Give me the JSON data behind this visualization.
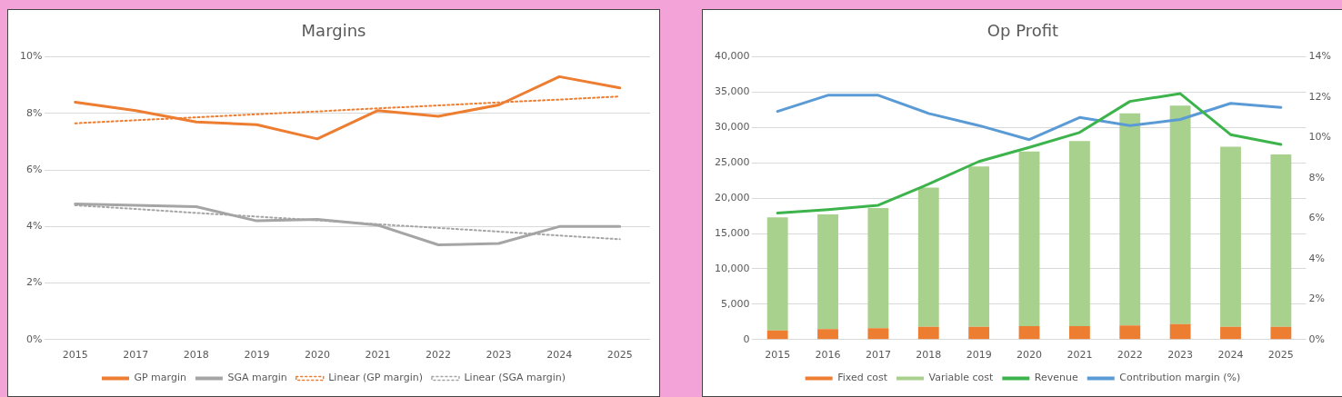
{
  "chart_data": [
    {
      "type": "line",
      "title": "Margins",
      "categories": [
        "2015",
        "2017",
        "2018",
        "2019",
        "2020",
        "2021",
        "2022",
        "2023",
        "2024",
        "2025"
      ],
      "series": [
        {
          "name": "GP margin",
          "color": "#ed7d31",
          "values": [
            8.4,
            8.1,
            7.7,
            7.6,
            7.1,
            8.1,
            7.9,
            8.3,
            9.3,
            8.9
          ]
        },
        {
          "name": "SGA margin",
          "color": "#a5a5a5",
          "values": [
            4.8,
            4.75,
            4.7,
            4.2,
            4.25,
            4.05,
            3.35,
            3.4,
            4.0,
            4.0
          ]
        },
        {
          "name": "Linear (GP margin)",
          "color": "#ed7d31",
          "line_style": "dotted",
          "values": [
            7.65,
            7.76,
            7.86,
            7.97,
            8.07,
            8.18,
            8.28,
            8.39,
            8.49,
            8.6
          ]
        },
        {
          "name": "Linear (SGA margin)",
          "color": "#a5a5a5",
          "line_style": "dotted",
          "values": [
            4.75,
            4.62,
            4.48,
            4.35,
            4.22,
            4.08,
            3.95,
            3.82,
            3.68,
            3.55
          ]
        }
      ],
      "ylim": [
        0,
        10
      ],
      "yticks": [
        {
          "value": 0,
          "label": "0%"
        },
        {
          "value": 2,
          "label": "2%"
        },
        {
          "value": 4,
          "label": "4%"
        },
        {
          "value": 6,
          "label": "6%"
        },
        {
          "value": 8,
          "label": "8%"
        },
        {
          "value": 10,
          "label": "10%"
        }
      ],
      "grid": "y",
      "legend": "bottom",
      "marker": "none"
    },
    {
      "type": "bar",
      "title": "Op Profit",
      "categories": [
        "2015",
        "2016",
        "2017",
        "2018",
        "2019",
        "2020",
        "2021",
        "2022",
        "2023",
        "2024",
        "2025"
      ],
      "stacked": true,
      "series": [
        {
          "name": "Fixed cost",
          "color": "#ed7d31",
          "values": [
            1300,
            1500,
            1600,
            1800,
            1800,
            1900,
            1900,
            2000,
            2200,
            1800,
            1800
          ]
        },
        {
          "name": "Variable cost",
          "color": "#a9d18e",
          "values": [
            16000,
            16200,
            17000,
            19700,
            22700,
            24700,
            26200,
            30000,
            30900,
            25500,
            24400
          ]
        },
        {
          "name": "Revenue",
          "type": "line",
          "color": "#3cb44b",
          "values": [
            17900,
            18400,
            19000,
            22000,
            25200,
            27200,
            29300,
            33700,
            34800,
            29000,
            27600
          ]
        },
        {
          "name": "Contribution margin (%)",
          "type": "line",
          "axis": "y2",
          "color": "#5b9bd5",
          "values": [
            11.3,
            12.1,
            12.1,
            11.2,
            10.6,
            9.9,
            11.0,
            10.6,
            10.9,
            11.7,
            11.5
          ]
        }
      ],
      "ylim": [
        0,
        40000
      ],
      "yticks": [
        {
          "value": 0,
          "label": "0"
        },
        {
          "value": 5000,
          "label": "5,000"
        },
        {
          "value": 10000,
          "label": "10,000"
        },
        {
          "value": 15000,
          "label": "15,000"
        },
        {
          "value": 20000,
          "label": "20,000"
        },
        {
          "value": 25000,
          "label": "25,000"
        },
        {
          "value": 30000,
          "label": "30,000"
        },
        {
          "value": 35000,
          "label": "35,000"
        },
        {
          "value": 40000,
          "label": "40,000"
        }
      ],
      "y2lim": [
        0,
        14
      ],
      "y2ticks": [
        {
          "value": 0,
          "label": "0%"
        },
        {
          "value": 2,
          "label": "2%"
        },
        {
          "value": 4,
          "label": "4%"
        },
        {
          "value": 6,
          "label": "6%"
        },
        {
          "value": 8,
          "label": "8%"
        },
        {
          "value": 10,
          "label": "10%"
        },
        {
          "value": 12,
          "label": "12%"
        },
        {
          "value": 14,
          "label": "14%"
        }
      ],
      "grid": "y",
      "legend": "bottom",
      "marker": "none"
    }
  ]
}
